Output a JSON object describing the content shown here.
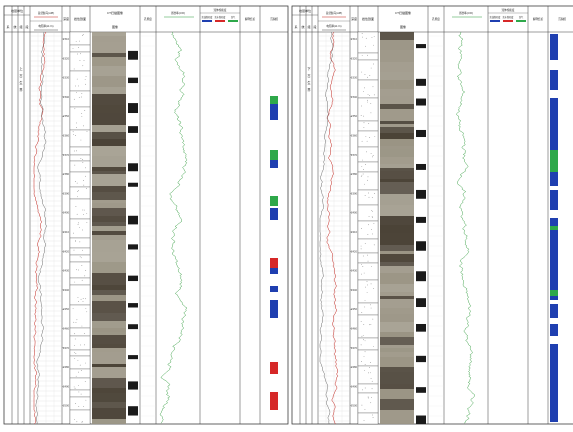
{
  "panels": [
    {
      "headers": {
        "strat": "地层单位",
        "system": "系",
        "series": "统",
        "group": "组",
        "member": "段",
        "log1": "自然伽马(API)",
        "log2": "电阻率(Ω·m)",
        "depth": "深度",
        "litho": "岩性剖面",
        "core": "CT扫描图像",
        "core_sub1": "图像",
        "porosity": "孔隙度",
        "perm_log": "渗透率(mD)",
        "fluids": "流体饱和度",
        "fluid_a": "含油饱和度",
        "fluid_b": "含水饱和度",
        "fluid_c": "含气",
        "interp": "解释结论",
        "facies": "沉积相"
      },
      "strat_text": [
        "上",
        "古",
        "生",
        "界"
      ]
    },
    {
      "headers": {
        "strat": "地层单位",
        "system": "系",
        "series": "统",
        "group": "组",
        "member": "段",
        "log1": "自然伽马(API)",
        "log2": "电阻率(Ω·m)",
        "depth": "深度",
        "litho": "岩性剖面",
        "core": "CT扫描图像",
        "core_sub1": "图像",
        "porosity": "孔隙度",
        "perm_log": "渗透率(mD)",
        "fluids": "流体饱和度",
        "fluid_a": "含油饱和度",
        "fluid_b": "含水饱和度",
        "fluid_c": "含气",
        "interp": "解释结论",
        "facies": "沉积相"
      },
      "strat_text": [
        "下",
        "古",
        "生",
        "界"
      ]
    }
  ],
  "depth_ticks": [
    "2310",
    "2320",
    "2330",
    "2340",
    "2350",
    "2360",
    "2370",
    "2380",
    "2390",
    "2400",
    "2410",
    "2420",
    "2430",
    "2440",
    "2450",
    "2460",
    "2470",
    "2480",
    "2490",
    "2500"
  ],
  "colors": {
    "gr_curve": "#c2261f",
    "res_curve": "#4a4a4a",
    "perm_curve": "#2e9a3a",
    "oil": "#1f3fb0",
    "water": "#d62828",
    "gas": "#2ea84a",
    "grid": "#3c3c3c",
    "core_dark": "#4a4236",
    "core_light": "#9a9484"
  }
}
